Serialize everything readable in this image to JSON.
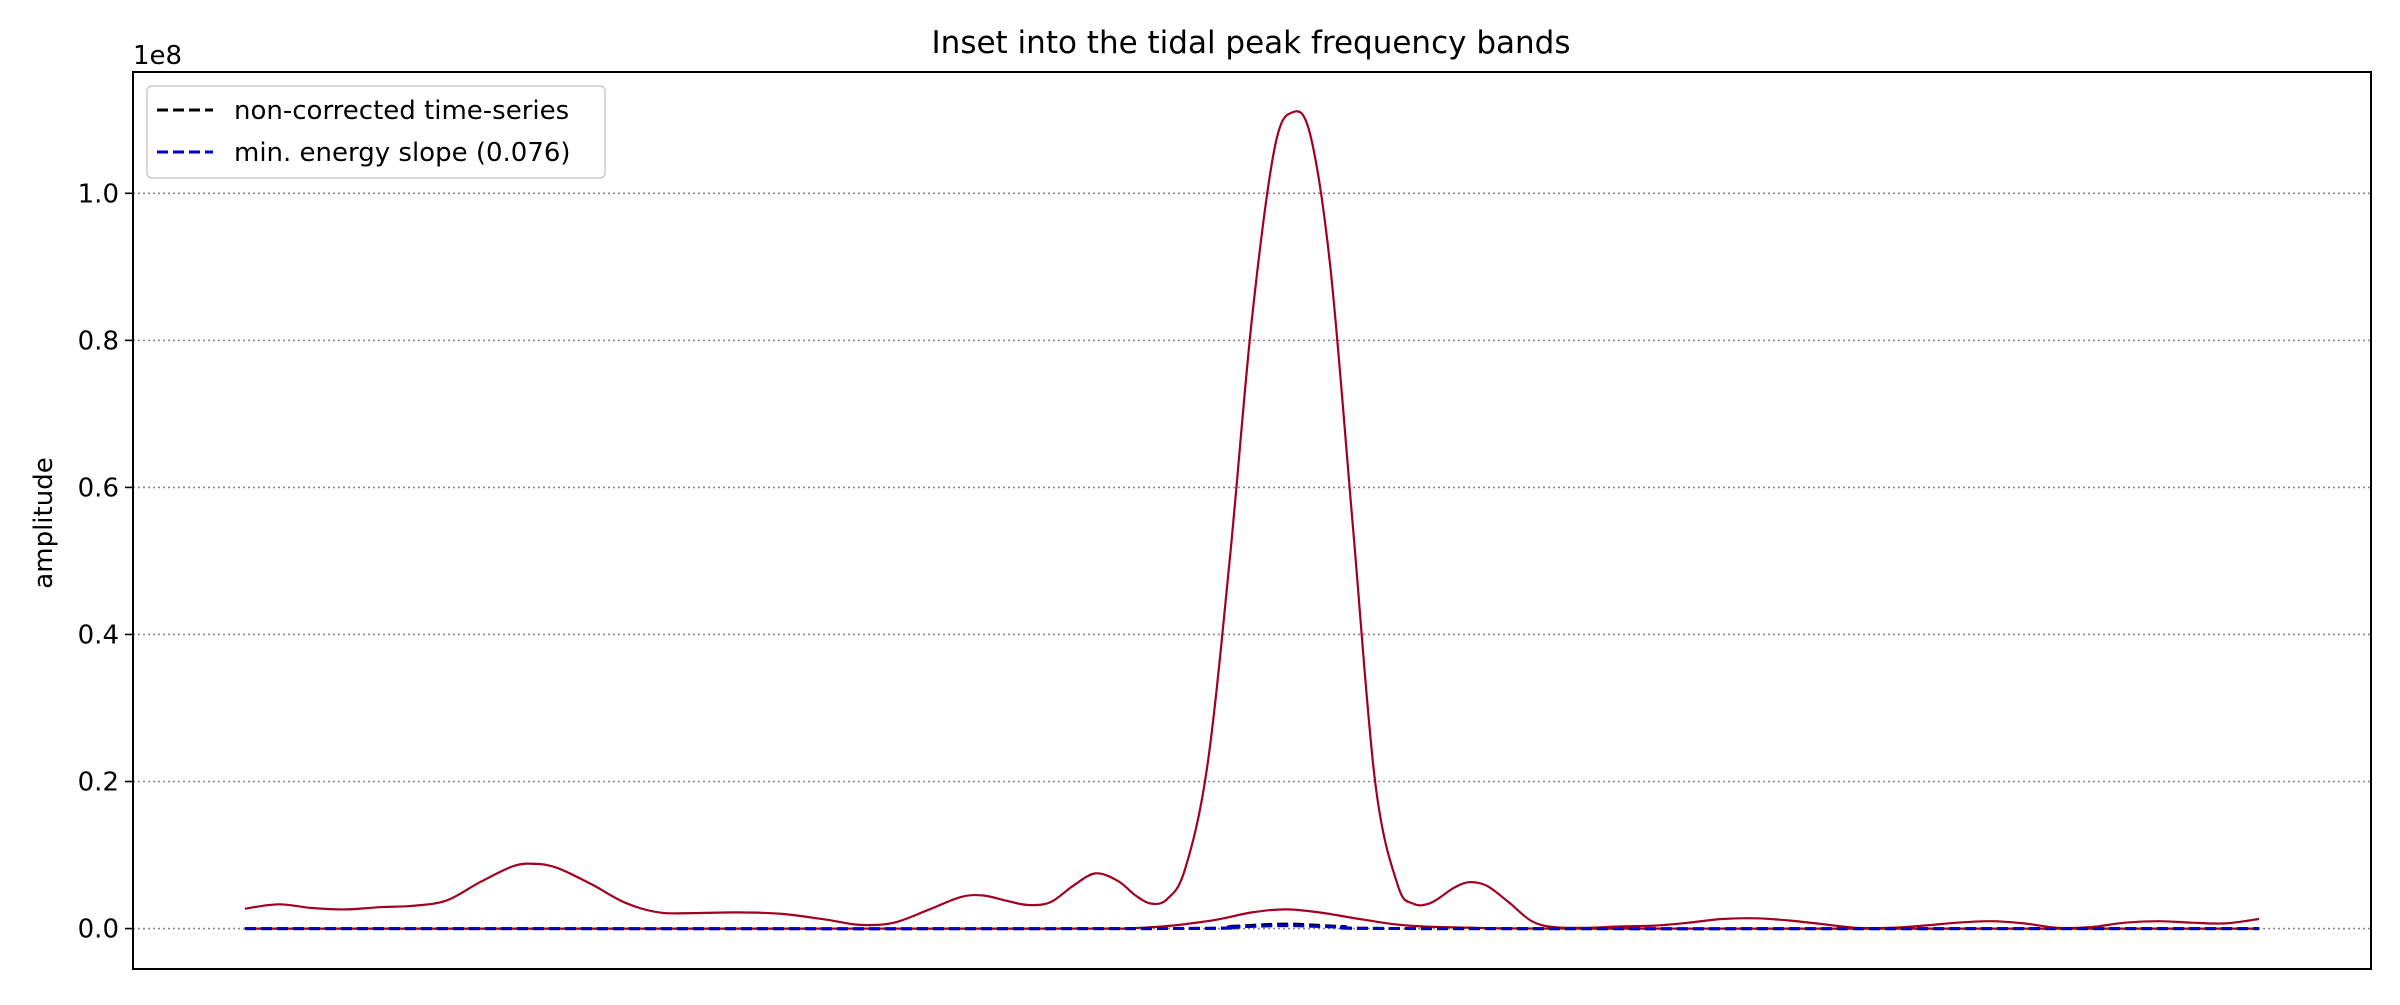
{
  "chart_data": {
    "type": "line",
    "title": "Inset into the tidal peak frequency bands",
    "ylabel": "amplitude",
    "xlabel": "",
    "y_offset_label": "1e8",
    "y_scale_factor": 100000000,
    "ylim": [
      -0.055,
      1.165
    ],
    "xlim": [
      0,
      1
    ],
    "x_ticks_visible": false,
    "y_ticks": [
      0.0,
      0.2,
      0.4,
      0.6,
      0.8,
      1.0
    ],
    "y_tick_labels": [
      "0.0",
      "0.2",
      "0.4",
      "0.6",
      "0.8",
      "1.0"
    ],
    "grid": "horizontal dotted",
    "legend_position": "top-left",
    "legend": [
      {
        "label": "non-corrected time-series",
        "color": "#000000",
        "style": "dashed"
      },
      {
        "label": "min. energy slope (0.076)",
        "color": "#0000cc",
        "style": "dashed"
      }
    ],
    "series": [
      {
        "color": "#a00022",
        "style": "solid",
        "points": [
          [
            0.05,
            0.027
          ],
          [
            0.065,
            0.033
          ],
          [
            0.08,
            0.028
          ],
          [
            0.095,
            0.026
          ],
          [
            0.11,
            0.029
          ],
          [
            0.125,
            0.031
          ],
          [
            0.14,
            0.038
          ],
          [
            0.155,
            0.063
          ],
          [
            0.17,
            0.085
          ],
          [
            0.18,
            0.088
          ],
          [
            0.19,
            0.082
          ],
          [
            0.205,
            0.06
          ],
          [
            0.22,
            0.035
          ],
          [
            0.235,
            0.022
          ],
          [
            0.25,
            0.021
          ],
          [
            0.27,
            0.022
          ],
          [
            0.29,
            0.02
          ],
          [
            0.31,
            0.012
          ],
          [
            0.325,
            0.005
          ],
          [
            0.34,
            0.008
          ],
          [
            0.355,
            0.025
          ],
          [
            0.37,
            0.043
          ],
          [
            0.38,
            0.045
          ],
          [
            0.39,
            0.038
          ],
          [
            0.4,
            0.032
          ],
          [
            0.41,
            0.036
          ],
          [
            0.42,
            0.058
          ],
          [
            0.43,
            0.075
          ],
          [
            0.44,
            0.065
          ],
          [
            0.448,
            0.045
          ],
          [
            0.455,
            0.034
          ],
          [
            0.462,
            0.04
          ],
          [
            0.47,
            0.08
          ],
          [
            0.48,
            0.22
          ],
          [
            0.49,
            0.5
          ],
          [
            0.5,
            0.83
          ],
          [
            0.51,
            1.06
          ],
          [
            0.518,
            1.11
          ],
          [
            0.526,
            1.08
          ],
          [
            0.535,
            0.9
          ],
          [
            0.545,
            0.55
          ],
          [
            0.555,
            0.2
          ],
          [
            0.565,
            0.06
          ],
          [
            0.572,
            0.034
          ],
          [
            0.58,
            0.035
          ],
          [
            0.59,
            0.055
          ],
          [
            0.597,
            0.063
          ],
          [
            0.605,
            0.058
          ],
          [
            0.615,
            0.035
          ],
          [
            0.625,
            0.01
          ],
          [
            0.635,
            0.002
          ],
          [
            0.65,
            0.001
          ],
          [
            0.665,
            0.003
          ],
          [
            0.68,
            0.004
          ],
          [
            0.695,
            0.008
          ],
          [
            0.71,
            0.013
          ],
          [
            0.725,
            0.014
          ],
          [
            0.74,
            0.011
          ],
          [
            0.755,
            0.006
          ],
          [
            0.77,
            0.001
          ],
          [
            0.785,
            0.001
          ],
          [
            0.8,
            0.004
          ],
          [
            0.815,
            0.008
          ],
          [
            0.83,
            0.01
          ],
          [
            0.845,
            0.007
          ],
          [
            0.86,
            0.001
          ],
          [
            0.875,
            0.002
          ],
          [
            0.89,
            0.008
          ],
          [
            0.905,
            0.01
          ],
          [
            0.92,
            0.008
          ],
          [
            0.935,
            0.007
          ],
          [
            0.95,
            0.013
          ]
        ]
      },
      {
        "color": "#a00022",
        "style": "solid",
        "points": [
          [
            0.05,
            0.0
          ],
          [
            0.4,
            0.0
          ],
          [
            0.45,
            0.001
          ],
          [
            0.48,
            0.01
          ],
          [
            0.5,
            0.022
          ],
          [
            0.515,
            0.026
          ],
          [
            0.53,
            0.022
          ],
          [
            0.55,
            0.012
          ],
          [
            0.57,
            0.004
          ],
          [
            0.6,
            0.001
          ],
          [
            0.65,
            0.0
          ],
          [
            0.95,
            0.0
          ]
        ]
      },
      {
        "color": "#000000",
        "style": "dashed",
        "points": [
          [
            0.05,
            0.0
          ],
          [
            0.45,
            0.0
          ],
          [
            0.49,
            0.003
          ],
          [
            0.515,
            0.006
          ],
          [
            0.54,
            0.003
          ],
          [
            0.58,
            0.0
          ],
          [
            0.95,
            0.0
          ]
        ]
      },
      {
        "color": "#0000cc",
        "style": "dashed",
        "points": [
          [
            0.05,
            0.0
          ],
          [
            0.45,
            0.0
          ],
          [
            0.49,
            0.002
          ],
          [
            0.515,
            0.004
          ],
          [
            0.54,
            0.002
          ],
          [
            0.58,
            0.0
          ],
          [
            0.95,
            0.0
          ]
        ]
      }
    ]
  }
}
